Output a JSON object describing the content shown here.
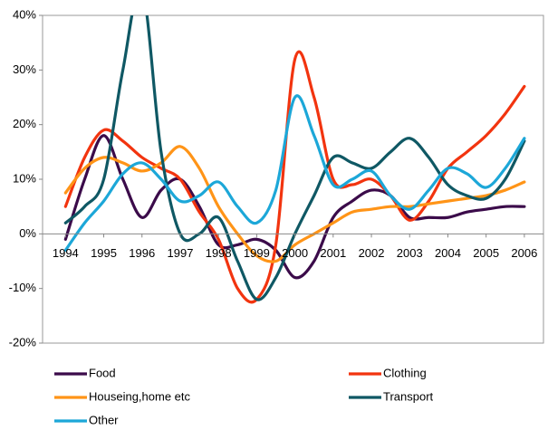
{
  "chart_data": {
    "type": "line",
    "x": [
      1994,
      1994.5,
      1995,
      1995.5,
      1996,
      1996.5,
      1997,
      1997.5,
      1998,
      1998.5,
      1999,
      1999.5,
      2000,
      2000.5,
      2001,
      2001.5,
      2002,
      2002.5,
      2003,
      2003.5,
      2004,
      2004.5,
      2005,
      2005.5,
      2006
    ],
    "xlim": [
      1993.4,
      2006.5
    ],
    "xticks": [
      1994,
      1995,
      1996,
      1997,
      1998,
      1999,
      2000,
      2001,
      2002,
      2003,
      2004,
      2005,
      2006
    ],
    "ylim": [
      -20,
      40
    ],
    "yticks": [
      {
        "value": -20,
        "label": "-20%"
      },
      {
        "value": -10,
        "label": "-10%"
      },
      {
        "value": 0,
        "label": "0%"
      },
      {
        "value": 10,
        "label": "10%"
      },
      {
        "value": 20,
        "label": "20%"
      },
      {
        "value": 30,
        "label": "30%"
      },
      {
        "value": 40,
        "label": "40%"
      }
    ],
    "grid": false,
    "legend": "bottom",
    "series": [
      {
        "name": "Food",
        "color": "#3b0b4a",
        "values": [
          -1,
          10,
          18,
          10,
          3,
          8,
          10,
          5,
          -2,
          -2,
          -1,
          -3,
          -8,
          -5,
          3,
          6,
          8,
          7,
          3,
          3,
          3,
          4,
          4.5,
          5,
          5
        ]
      },
      {
        "name": "Clothing",
        "color": "#f2340f",
        "values": [
          5,
          14,
          19,
          17,
          14,
          12,
          10,
          4,
          -1,
          -10,
          -12,
          -2,
          32,
          25,
          10,
          9,
          10,
          7,
          2.5,
          6,
          12,
          15,
          18,
          22,
          27
        ]
      },
      {
        "name": "Houseing,home etc",
        "color": "#ff9417",
        "values": [
          7.5,
          12,
          14,
          13,
          11.5,
          13,
          16,
          12,
          5,
          0,
          -4,
          -5,
          -2,
          0,
          2,
          4,
          4.5,
          5,
          5,
          5.5,
          6,
          6.5,
          7,
          8,
          9.5
        ]
      },
      {
        "name": "Transport",
        "color": "#0f5864",
        "values": [
          2,
          5,
          10,
          30,
          45,
          15,
          0,
          0,
          3,
          -5,
          -12,
          -8,
          0,
          7,
          14,
          13,
          12,
          15,
          17.5,
          14,
          9,
          7,
          6.5,
          10,
          17
        ]
      },
      {
        "name": "Other",
        "color": "#1ca7d8",
        "values": [
          -3,
          2,
          6,
          11,
          13,
          10,
          6,
          7,
          9.5,
          5,
          2,
          8,
          25,
          18,
          9,
          10,
          11.5,
          7,
          4.5,
          8,
          12,
          11,
          8.5,
          12,
          17.5
        ]
      }
    ]
  }
}
